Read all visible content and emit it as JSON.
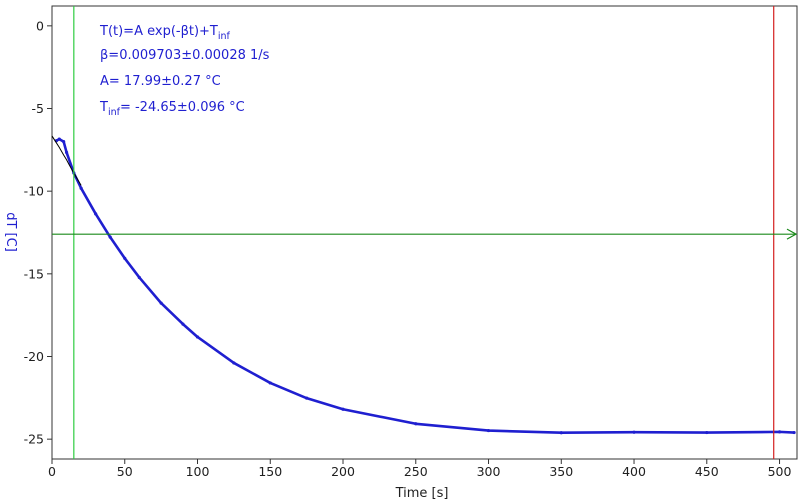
{
  "chart_data": {
    "type": "scatter",
    "xlabel": "Time [s]",
    "ylabel": "dT [C]",
    "xlim": [
      0,
      512
    ],
    "ylim": [
      -26.2,
      1.2
    ],
    "x_ticks": [
      0,
      50,
      100,
      150,
      200,
      250,
      300,
      350,
      400,
      450,
      500
    ],
    "y_ticks": [
      0,
      -5,
      -10,
      -15,
      -20,
      -25
    ],
    "grid": false,
    "annotations": {
      "model_prefix": "T(t)=A exp(-βt)+T",
      "model_sub": "inf",
      "beta": "β=0.009703±0.00028 1/s",
      "amplitude": "A= 17.99±0.27 °C",
      "tinf_prefix": "T",
      "tinf_sub": "inf",
      "tinf_value": "= -24.65±0.096 °C"
    },
    "fit": {
      "A": 17.99,
      "beta": 0.009703,
      "T_inf": -24.65
    },
    "markers": {
      "green_vertical_x": 15,
      "red_vertical_x": 496,
      "horizontal_y": -12.6
    },
    "series": [
      {
        "color": "#1f1fd0",
        "x": [
          3,
          5,
          8,
          10,
          15,
          20,
          30,
          40,
          50,
          60,
          75,
          90,
          100,
          125,
          150,
          175,
          200,
          250,
          300,
          350,
          400,
          450,
          500,
          510
        ],
        "y": [
          -6.95,
          -6.85,
          -7.0,
          -7.65,
          -8.9,
          -9.82,
          -11.37,
          -12.78,
          -14.06,
          -15.22,
          -16.77,
          -18.04,
          -18.82,
          -20.39,
          -21.6,
          -22.52,
          -23.19,
          -24.07,
          -24.48,
          -24.61,
          -24.58,
          -24.6,
          -24.56,
          -24.6
        ]
      },
      {
        "color": "#000000",
        "x": [
          0,
          2,
          5,
          8,
          10,
          12,
          15,
          20
        ],
        "y": [
          -6.66,
          -6.94,
          -7.35,
          -7.81,
          -8.1,
          -8.43,
          -8.9,
          -9.65
        ]
      }
    ],
    "colors": {
      "data": "#1f1fd0",
      "fit_line": "#000000",
      "green_cursor": "#2ecc40",
      "red_cursor": "#d42020",
      "horizontal_cursor": "#1a8a1a",
      "axis_title": "#1f1fd0"
    }
  }
}
